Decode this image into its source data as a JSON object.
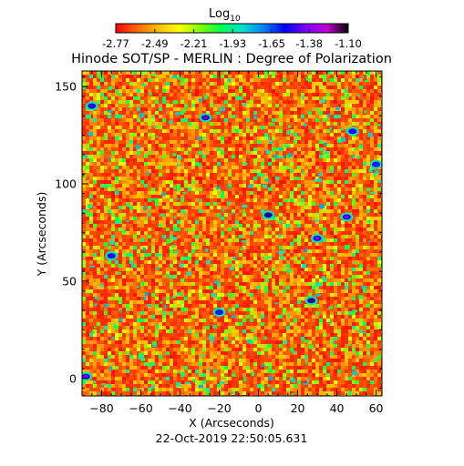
{
  "chart_data": {
    "type": "heatmap",
    "title": "Hinode SOT/SP - MERLIN : Degree of Polarization",
    "xlabel": "X (Arcseconds)",
    "ylabel": "Y (Arcseconds)",
    "xlim": [
      -90,
      63
    ],
    "ylim": [
      -9,
      158
    ],
    "xticks": [
      -80,
      -60,
      -40,
      -20,
      0,
      20,
      40,
      60
    ],
    "yticks": [
      0,
      50,
      100,
      150
    ],
    "colorbar": {
      "label_main": "Log",
      "label_sub": "10",
      "ticks": [
        -2.77,
        -2.49,
        -2.21,
        -1.93,
        -1.65,
        -1.38,
        -1.1
      ],
      "tick_labels": [
        "-2.77",
        "-2.49",
        "-2.21",
        "-1.93",
        "-1.65",
        "-1.38",
        "-1.10"
      ],
      "range": [
        -2.77,
        -1.1
      ],
      "colormap": "rainbow (red to violet to black)"
    },
    "timestamp": "22-Oct-2019 22:50:05.631",
    "dominant_level": -2.6,
    "strong_features": [
      {
        "x": -27,
        "y": 134,
        "value": -1.2
      },
      {
        "x": 5,
        "y": 84,
        "value": -1.15
      },
      {
        "x": 45,
        "y": 83,
        "value": -1.4
      },
      {
        "x": 30,
        "y": 72,
        "value": -1.4
      },
      {
        "x": -75,
        "y": 63,
        "value": -1.5
      },
      {
        "x": 27,
        "y": 40,
        "value": -1.15
      },
      {
        "x": -88,
        "y": 1,
        "value": -1.4
      },
      {
        "x": -85,
        "y": 140,
        "value": -1.5
      },
      {
        "x": 48,
        "y": 127,
        "value": -1.5
      },
      {
        "x": -20,
        "y": 34,
        "value": -1.6
      },
      {
        "x": 60,
        "y": 110,
        "value": -1.6
      }
    ]
  },
  "colors": {
    "rainbow": [
      "#ff0000",
      "#ff6600",
      "#ffbb00",
      "#ffff00",
      "#80ff00",
      "#00ff50",
      "#00e0d0",
      "#0080ff",
      "#0000ff",
      "#8000ff",
      "#c000d0",
      "#000000"
    ]
  }
}
